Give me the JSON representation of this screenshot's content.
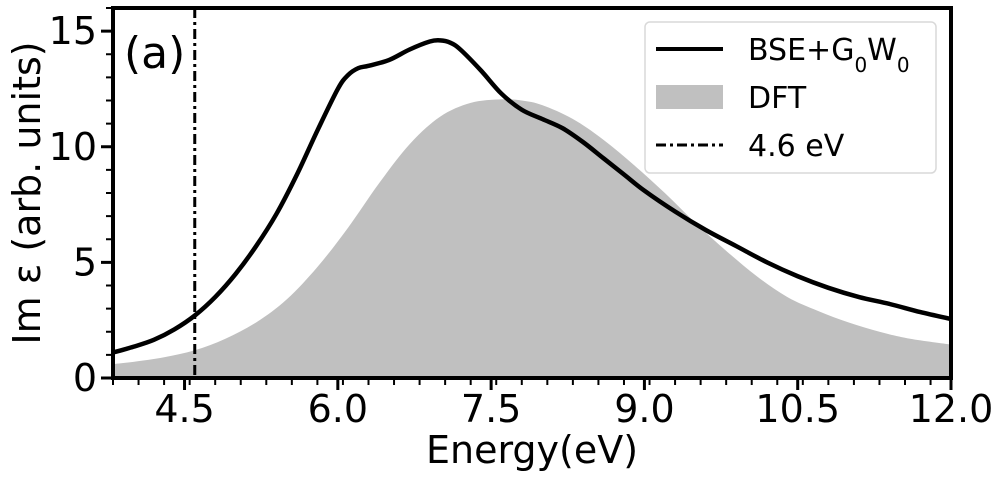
{
  "chart_data": {
    "type": "line",
    "panel_label": "(a)",
    "xlabel": "Energy(eV)",
    "ylabel": "Im ε (arb. units)",
    "xlim": [
      3.8,
      12.0
    ],
    "ylim": [
      0,
      16
    ],
    "xticks": [
      4.5,
      6.0,
      7.5,
      9.0,
      10.5,
      12.0
    ],
    "xtick_labels": [
      "4.5",
      "6.0",
      "7.5",
      "9.0",
      "10.5",
      "12.0"
    ],
    "yticks": [
      0,
      5,
      10,
      15
    ],
    "ytick_labels": [
      "0",
      "5",
      "10",
      "15"
    ],
    "x_minor_step": 0.25,
    "y_minor_step": 1,
    "legend": {
      "position": "top-right",
      "entries": [
        {
          "key": "bse",
          "label": "BSE+G",
          "sub1": "0",
          "mid": "W",
          "sub2": "0"
        },
        {
          "key": "dft",
          "label": "DFT"
        },
        {
          "key": "vline",
          "label": "4.6 eV"
        }
      ]
    },
    "series": [
      {
        "name": "BSE+G0W0",
        "style": "line",
        "color": "#000000",
        "x": [
          3.8,
          4.0,
          4.2,
          4.4,
          4.6,
          4.8,
          5.0,
          5.2,
          5.4,
          5.6,
          5.8,
          6.0,
          6.1,
          6.2,
          6.3,
          6.5,
          6.7,
          6.9,
          7.0,
          7.1,
          7.2,
          7.4,
          7.6,
          7.8,
          8.0,
          8.2,
          8.4,
          8.6,
          8.8,
          9.0,
          9.3,
          9.6,
          9.9,
          10.2,
          10.5,
          10.8,
          11.1,
          11.4,
          11.7,
          12.0
        ],
        "y": [
          1.1,
          1.35,
          1.65,
          2.1,
          2.7,
          3.5,
          4.5,
          5.7,
          7.1,
          8.8,
          10.7,
          12.5,
          13.1,
          13.4,
          13.5,
          13.75,
          14.2,
          14.55,
          14.6,
          14.5,
          14.2,
          13.3,
          12.3,
          11.6,
          11.2,
          10.8,
          10.2,
          9.5,
          8.8,
          8.1,
          7.2,
          6.4,
          5.7,
          5.0,
          4.4,
          3.9,
          3.5,
          3.2,
          2.85,
          2.55
        ]
      },
      {
        "name": "DFT",
        "style": "area",
        "color": "#c0c0c0",
        "x": [
          3.8,
          4.0,
          4.3,
          4.6,
          4.9,
          5.2,
          5.5,
          5.8,
          6.1,
          6.4,
          6.7,
          7.0,
          7.3,
          7.6,
          7.8,
          8.0,
          8.3,
          8.6,
          8.9,
          9.2,
          9.5,
          9.8,
          10.1,
          10.4,
          10.7,
          11.0,
          11.3,
          11.6,
          12.0
        ],
        "y": [
          0.6,
          0.7,
          0.9,
          1.2,
          1.7,
          2.4,
          3.4,
          4.8,
          6.5,
          8.4,
          10.1,
          11.3,
          11.9,
          12.05,
          12.0,
          11.8,
          11.2,
          10.3,
          9.2,
          8.0,
          6.7,
          5.5,
          4.4,
          3.5,
          2.9,
          2.4,
          2.0,
          1.7,
          1.45
        ]
      }
    ],
    "vline": {
      "x": 4.6,
      "label": "4.6 eV",
      "style": "dash-dot",
      "color": "#000000"
    }
  }
}
